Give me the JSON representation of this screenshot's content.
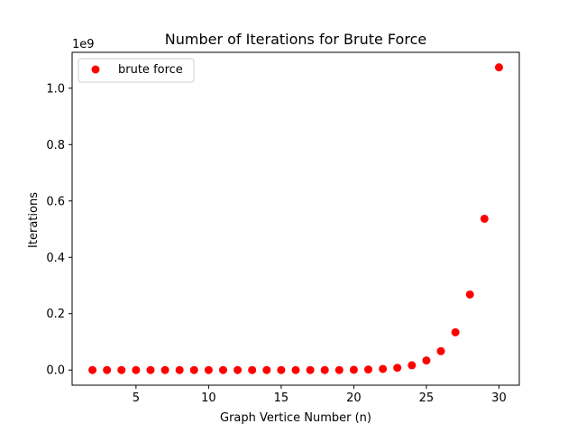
{
  "chart_data": {
    "type": "scatter",
    "title": "Number of Iterations for Brute Force",
    "xlabel": "Graph Vertice Number (n)",
    "ylabel": "Iterations",
    "y_offset_label": "1e9",
    "xlim": [
      0.6,
      31.4
    ],
    "ylim": [
      -0.0537,
      1.1274
    ],
    "x_ticks": [
      5,
      10,
      15,
      20,
      25,
      30
    ],
    "x_tick_labels": [
      "5",
      "10",
      "15",
      "20",
      "25",
      "30"
    ],
    "y_ticks": [
      0.0,
      0.2,
      0.4,
      0.6,
      0.8,
      1.0
    ],
    "y_tick_labels": [
      "0.0",
      "0.2",
      "0.4",
      "0.6",
      "0.8",
      "1.0"
    ],
    "grid": false,
    "legend_position": "top-left",
    "series": [
      {
        "name": "brute force",
        "color": "#ff0000",
        "x": [
          2,
          3,
          4,
          5,
          6,
          7,
          8,
          9,
          10,
          11,
          12,
          13,
          14,
          15,
          16,
          17,
          18,
          19,
          20,
          21,
          22,
          23,
          24,
          25,
          26,
          27,
          28,
          29,
          30
        ],
        "y": [
          0,
          0,
          0,
          0,
          0,
          0,
          0,
          0,
          0,
          0,
          0,
          0,
          0,
          0,
          0,
          0,
          0,
          0,
          0.001,
          0.002,
          0.004,
          0.008,
          0.017,
          0.034,
          0.067,
          0.134,
          0.268,
          0.537,
          1.074
        ]
      }
    ]
  }
}
